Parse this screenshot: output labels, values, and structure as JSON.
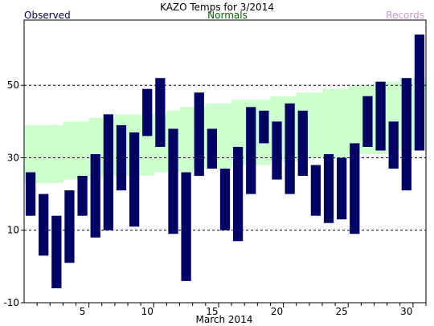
{
  "chart_data": {
    "type": "bar",
    "title": "KAZO Temps for  3/2014",
    "legend": {
      "observed": "Observed",
      "normals": "Normals",
      "records": "Records"
    },
    "xlabel": "March 2014",
    "ylabel": "",
    "ylim": [
      -10,
      68
    ],
    "yticks": [
      -10,
      10,
      30,
      50
    ],
    "xticks": [
      5,
      10,
      15,
      20,
      25,
      30
    ],
    "days": [
      1,
      2,
      3,
      4,
      5,
      6,
      7,
      8,
      9,
      10,
      11,
      12,
      13,
      14,
      15,
      16,
      17,
      18,
      19,
      20,
      21,
      22,
      23,
      24,
      25,
      26,
      27,
      28,
      29,
      30,
      31
    ],
    "series": [
      {
        "name": "Observed",
        "high": [
          26,
          20,
          14,
          21,
          25,
          31,
          42,
          39,
          37,
          49,
          52,
          38,
          26,
          48,
          38,
          27,
          33,
          44,
          43,
          40,
          45,
          43,
          28,
          31,
          30,
          34,
          47,
          51,
          40,
          52,
          64
        ],
        "low": [
          14,
          3,
          -6,
          1,
          14,
          8,
          10,
          21,
          11,
          36,
          33,
          9,
          -4,
          25,
          27,
          10,
          7,
          20,
          34,
          24,
          20,
          25,
          14,
          12,
          13,
          9,
          33,
          32,
          27,
          21,
          32
        ]
      },
      {
        "name": "Normals",
        "high": [
          39,
          39,
          39,
          40,
          40,
          41,
          41,
          42,
          42,
          42,
          42,
          43,
          44,
          44,
          45,
          45,
          46,
          46,
          46,
          47,
          47,
          48,
          48,
          49,
          49,
          50,
          50,
          51,
          51,
          52,
          52
        ],
        "low": [
          23,
          23,
          23,
          24,
          24,
          24,
          25,
          25,
          25,
          25,
          26,
          26,
          26,
          27,
          27,
          27,
          28,
          28,
          28,
          29,
          29,
          29,
          30,
          30,
          30,
          31,
          31,
          31,
          32,
          32,
          32
        ]
      }
    ],
    "colors": {
      "observed": "#000066",
      "normals_fill": "#ccffcc",
      "normals_text": "#006600",
      "records_text": "#cc99cc",
      "grid": "#000000"
    },
    "grid": "dashed horizontal"
  }
}
